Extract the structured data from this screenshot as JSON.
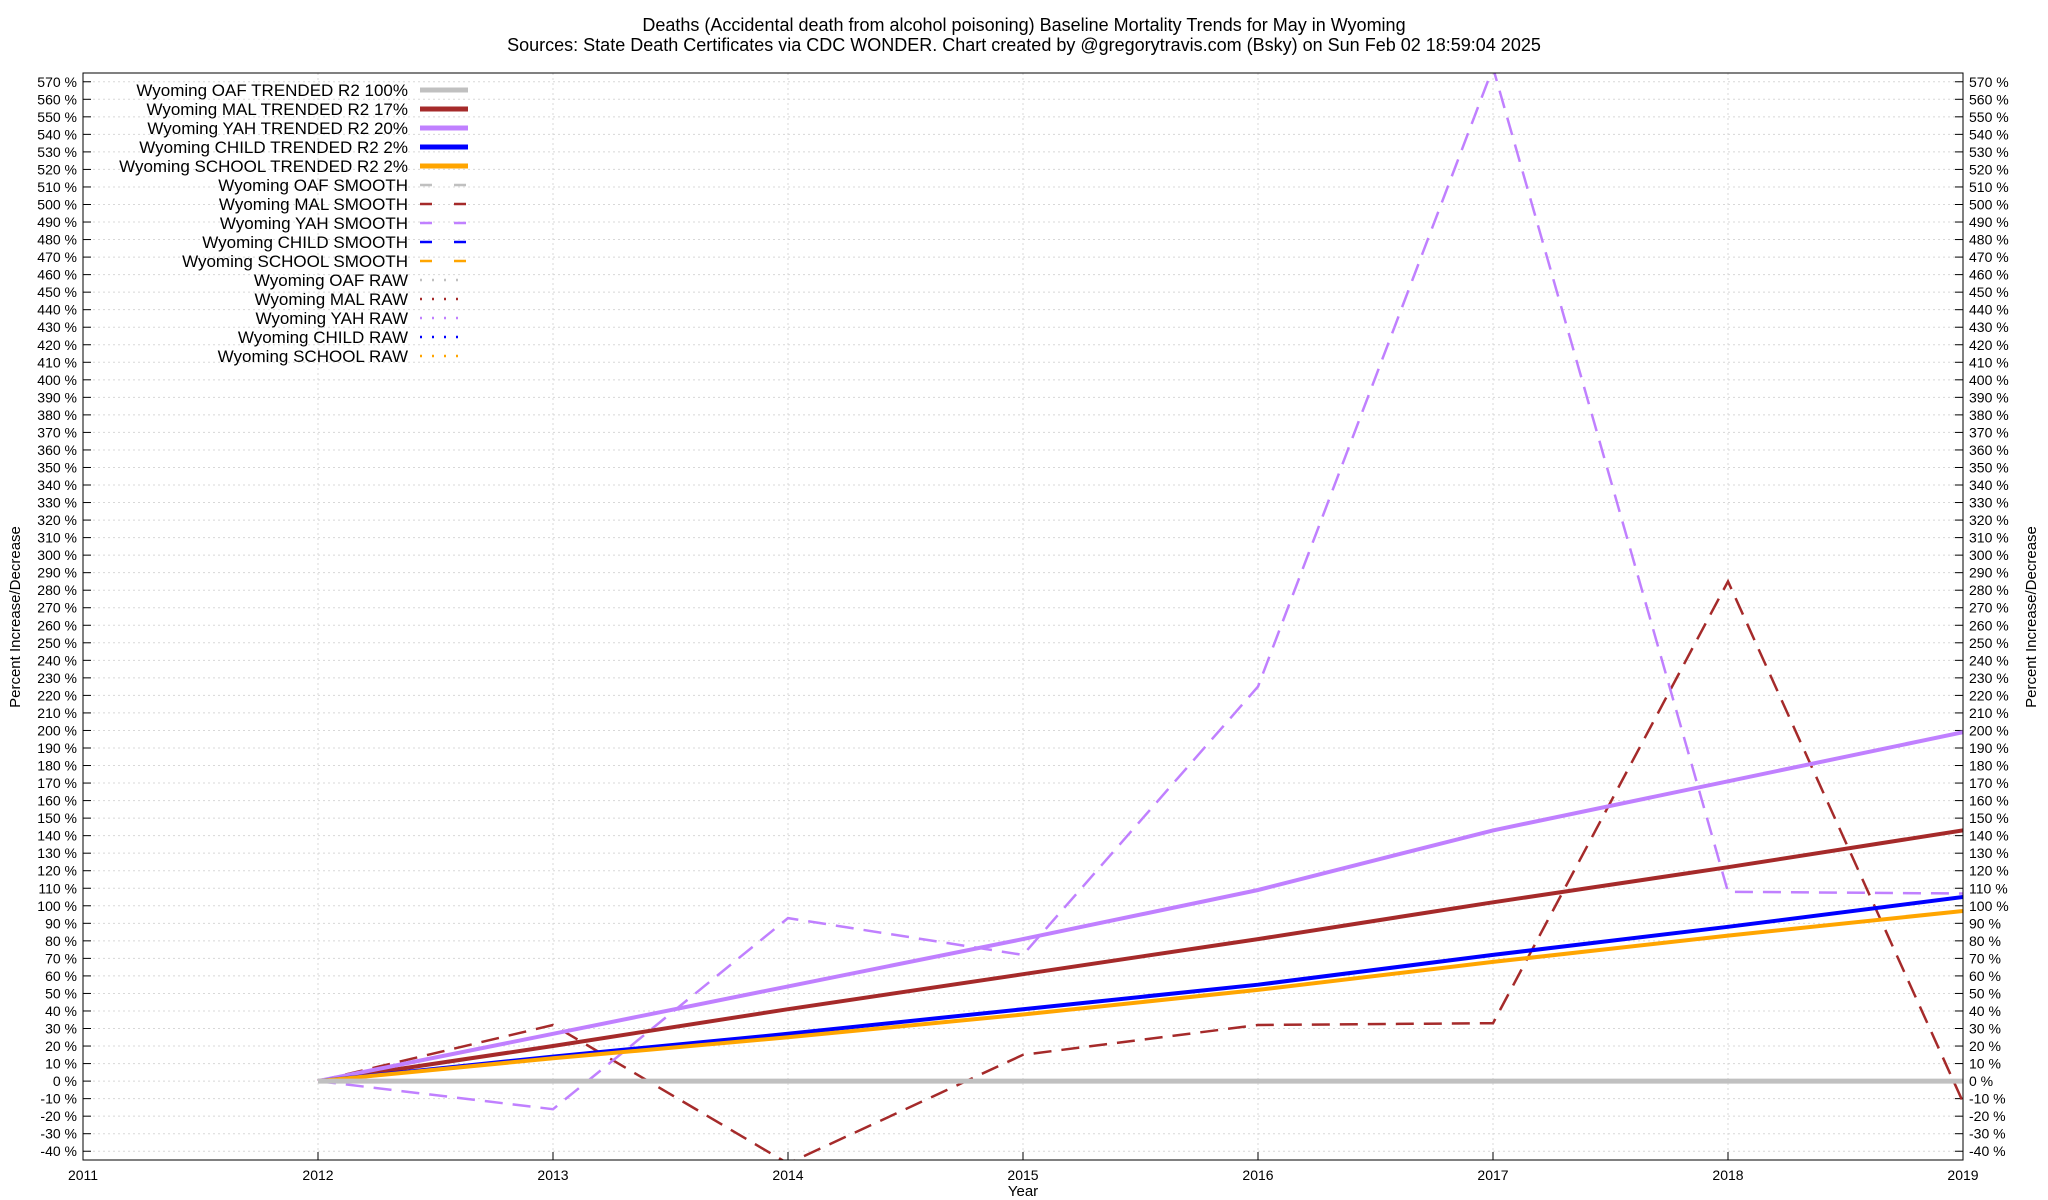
{
  "chart_data": {
    "type": "line",
    "title": "Deaths (Accidental death from alcohol poisoning)  Baseline Mortality Trends for May in Wyoming",
    "subtitle": "Sources: State Death Certificates via CDC WONDER.              Chart created by @gregorytravis.com (Bsky) on Sun Feb 02 18:59:04 2025",
    "xlabel": "Year",
    "ylabel": "Percent Increase/Decrease",
    "ylabel_right": "Percent Increase/Decrease",
    "xlim": [
      2011,
      2019
    ],
    "ylim": [
      -45,
      575
    ],
    "x_ticks": [
      2011,
      2012,
      2013,
      2014,
      2015,
      2016,
      2017,
      2018,
      2019
    ],
    "y_tick_step": 10,
    "y_tick_min": -40,
    "y_tick_max": 570,
    "y_tick_suffix": " %",
    "grid": true,
    "legend_position": "top-left",
    "series": [
      {
        "name": "Wyoming OAF TRENDED R2 100%",
        "style": "solid",
        "color": "#c0c0c0",
        "x": [
          2012,
          2019
        ],
        "values": [
          0,
          0
        ]
      },
      {
        "name": "Wyoming MAL TRENDED R2  17%",
        "style": "solid",
        "color": "#a52a2a",
        "x": [
          2012,
          2013,
          2014,
          2015,
          2016,
          2017,
          2018,
          2019
        ],
        "values": [
          0,
          20,
          41,
          61,
          81,
          102,
          122,
          143
        ]
      },
      {
        "name": "Wyoming YAH TRENDED R2  20%",
        "style": "solid",
        "color": "#c080ff",
        "x": [
          2012,
          2013,
          2014,
          2015,
          2016,
          2017,
          2018,
          2019
        ],
        "values": [
          0,
          27,
          54,
          81,
          109,
          143,
          171,
          199
        ]
      },
      {
        "name": "Wyoming CHILD TRENDED R2   2%",
        "style": "solid",
        "color": "#0000ff",
        "x": [
          2012,
          2013,
          2014,
          2015,
          2016,
          2017,
          2018,
          2019
        ],
        "values": [
          0,
          14,
          27,
          41,
          55,
          72,
          88,
          105
        ]
      },
      {
        "name": "Wyoming SCHOOL TRENDED R2   2%",
        "style": "solid",
        "color": "#ffa500",
        "x": [
          2012,
          2013,
          2014,
          2015,
          2016,
          2017,
          2018,
          2019
        ],
        "values": [
          0,
          13,
          25,
          38,
          52,
          68,
          83,
          97
        ]
      },
      {
        "name": "Wyoming OAF SMOOTH",
        "style": "dash",
        "color": "#c0c0c0",
        "x": [],
        "values": []
      },
      {
        "name": "Wyoming MAL SMOOTH",
        "style": "dash",
        "color": "#a52a2a",
        "x": [
          2012,
          2013,
          2014,
          2015,
          2016,
          2017,
          2018,
          2019
        ],
        "values": [
          0,
          32,
          -47,
          15,
          32,
          33,
          285,
          -12
        ]
      },
      {
        "name": "Wyoming YAH SMOOTH",
        "style": "dash",
        "color": "#c080ff",
        "x": [
          2012,
          2013,
          2014,
          2015,
          2016,
          2017,
          2018,
          2019
        ],
        "values": [
          0,
          -16,
          93,
          72,
          225,
          578,
          108,
          107
        ]
      },
      {
        "name": "Wyoming CHILD SMOOTH",
        "style": "dash",
        "color": "#0000ff",
        "x": [],
        "values": []
      },
      {
        "name": "Wyoming SCHOOL SMOOTH",
        "style": "dash",
        "color": "#ffa500",
        "x": [],
        "values": []
      },
      {
        "name": "Wyoming OAF RAW",
        "style": "dot",
        "color": "#c0c0c0",
        "x": [],
        "values": []
      },
      {
        "name": "Wyoming MAL RAW",
        "style": "dot",
        "color": "#a52a2a",
        "x": [],
        "values": []
      },
      {
        "name": "Wyoming YAH RAW",
        "style": "dot",
        "color": "#c080ff",
        "x": [],
        "values": []
      },
      {
        "name": "Wyoming CHILD RAW",
        "style": "dot",
        "color": "#0000ff",
        "x": [],
        "values": []
      },
      {
        "name": "Wyoming SCHOOL RAW",
        "style": "dot",
        "color": "#ffa500",
        "x": [],
        "values": []
      }
    ]
  }
}
